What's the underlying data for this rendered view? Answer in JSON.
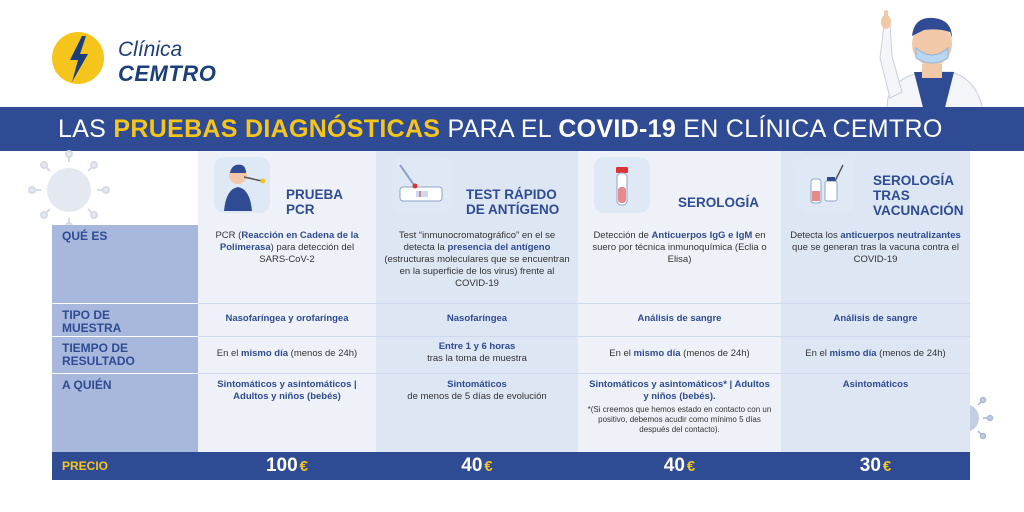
{
  "brand": {
    "line1": "Clínica",
    "line2": "CEMTRO",
    "yellow": "#f5c51c",
    "blue": "#2e4b94"
  },
  "banner": {
    "part1": "LAS ",
    "part2": "PRUEBAS DIAGNÓSTICAS",
    "part3": " PARA EL ",
    "part4": "COVID-19",
    "part5": " EN CLÍNICA CEMTRO"
  },
  "columns": [
    {
      "title_line1": "PRUEBA",
      "title_line2": "PCR",
      "icon": "nasal-swab-icon"
    },
    {
      "title_line1": "TEST RÁPIDO",
      "title_line2": "DE ANTÍGENO",
      "icon": "antigen-test-icon"
    },
    {
      "title_line1": "SEROLOGÍA",
      "title_line2": "",
      "icon": "blood-tube-icon"
    },
    {
      "title_line1": "SEROLOGÍA",
      "title_line2": "TRAS",
      "title_line3": "VACUNACIÓN",
      "icon": "vaccine-vial-icon"
    }
  ],
  "rows": {
    "que_es": {
      "label": "QUÉ ES",
      "pcr": {
        "a": "PCR (",
        "b": "Reacción en Cadena de la Polimerasa",
        "c": ") para detección del SARS-CoV-2"
      },
      "antigeno": {
        "a": "Test “inmunocromatográfico” en el se detecta la ",
        "b": "presencia del antígeno",
        "c": " (estructuras moleculares que se encuentran en la superficie de los virus) frente al COVID-19"
      },
      "serologia": {
        "a": "Detección de ",
        "b": "Anticuerpos IgG e IgM",
        "c": " en suero por técnica inmunoquímica (Eclia o Elisa)"
      },
      "vacunacion": {
        "a": "Detecta los ",
        "b": "anticuerpos neutralizantes",
        "c": " que se generan tras la vacuna contra el COVID-19"
      }
    },
    "tipo": {
      "label_line1": "TIPO DE",
      "label_line2": "MUESTRA",
      "pcr": "Nasofaríngea y orofaríngea",
      "antigeno": "Nasofaríngea",
      "serologia": "Análisis de sangre",
      "vacunacion": "Análisis de sangre"
    },
    "tiempo": {
      "label_line1": "TIEMPO DE",
      "label_line2": "RESULTADO",
      "pcr": {
        "a": "En el ",
        "b": "mismo día",
        "c": " (menos de 24h)"
      },
      "antigeno": {
        "b": "Entre 1 y 6 horas",
        "c": "tras la toma de muestra"
      },
      "serologia": {
        "a": "En el ",
        "b": "mismo día",
        "c": " (menos de 24h)"
      },
      "vacunacion": {
        "a": "En el ",
        "b": "mismo día",
        "c": " (menos de 24h)"
      }
    },
    "quien": {
      "label": "A QUIÉN",
      "pcr": {
        "b": "Sintomáticos y asintomáticos | Adultos y niños (bebés)"
      },
      "antigeno": {
        "b": "Sintomáticos",
        "c": "de menos de 5 días de evolución"
      },
      "serologia": {
        "b": "Sintomáticos y asintomáticos* | Adultos y niños (bebés).",
        "note": "*(Si creemos que hemos estado en contacto con un positivo, debemos acudir como mínimo 5 días después del contacto)."
      },
      "vacunacion": {
        "b": "Asintomáticos"
      }
    }
  },
  "price": {
    "label": "PRECIO",
    "currency": "€",
    "pcr": "100",
    "antigeno": "40",
    "serologia": "40",
    "vacunacion": "30"
  }
}
